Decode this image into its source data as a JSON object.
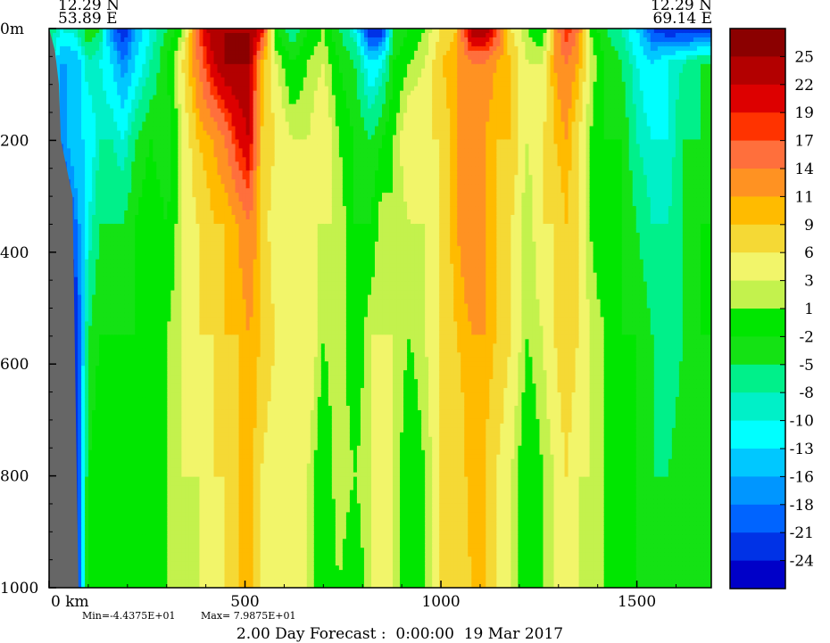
{
  "chart_data": {
    "type": "heatmap",
    "corner_left": {
      "lat": "12.29 N",
      "lon": "53.89 E"
    },
    "corner_right": {
      "lat": "12.29 N",
      "lon": "69.14 E"
    },
    "y_axis": {
      "ticks": [
        "0m",
        "200",
        "400",
        "600",
        "800",
        "1000"
      ],
      "range": [
        0,
        1000
      ],
      "inverted": true
    },
    "x_axis": {
      "ticks": [
        "0 km",
        "500",
        "1000",
        "1500"
      ],
      "range": [
        0,
        1690
      ]
    },
    "stats": {
      "min_label": "Min=-4.4375E+01",
      "max_label": "Max= 7.9875E+01"
    },
    "footer": "2.00 Day Forecast :  0:00:00  19 Mar 2017",
    "colorbar": {
      "labels": [
        "25",
        "22",
        "19",
        "17",
        "14",
        "11",
        "9",
        "6",
        "3",
        "1",
        "-2",
        "-5",
        "-8",
        "-10",
        "-13",
        "-16",
        "-18",
        "-21",
        "-24"
      ],
      "colors": [
        "#8b0000",
        "#b30000",
        "#dd0000",
        "#ff3300",
        "#ff6f3c",
        "#ff9222",
        "#ffbb00",
        "#f5d935",
        "#f2f56a",
        "#c3f24d",
        "#00e600",
        "#14e214",
        "#00f08a",
        "#00f0c8",
        "#00ffff",
        "#00c8ff",
        "#0096ff",
        "#0064ff",
        "#0032e6",
        "#0000c8"
      ]
    },
    "field": {
      "x": [
        0,
        30,
        70,
        100,
        130,
        160,
        190,
        220,
        260,
        300,
        340,
        380,
        420,
        450,
        480,
        510,
        540,
        580,
        620,
        660,
        700,
        740,
        780,
        820,
        850,
        880,
        920,
        960,
        1000,
        1040,
        1080,
        1110,
        1140,
        1180,
        1220,
        1260,
        1290,
        1320,
        1350,
        1380,
        1420,
        1460,
        1500,
        1540,
        1580,
        1620,
        1660,
        1690
      ],
      "columns": [
        [
          -5,
          -8,
          -10,
          -13,
          -10,
          -8,
          -5
        ],
        [
          -10,
          -16,
          -18,
          -24,
          -24,
          -24,
          -24
        ],
        [
          -8,
          -16,
          -13,
          -18,
          -24,
          -24,
          -24
        ],
        [
          -2,
          -8,
          -13,
          -10,
          -5,
          -2,
          -2
        ],
        [
          -5,
          -10,
          -8,
          -5,
          -2,
          1,
          -2
        ],
        [
          -18,
          -13,
          -8,
          -5,
          -2,
          -2,
          -2
        ],
        [
          -24,
          -18,
          -10,
          -5,
          -2,
          -2,
          1
        ],
        [
          -16,
          -13,
          -5,
          -2,
          -2,
          -2,
          -2
        ],
        [
          -10,
          -8,
          -2,
          1,
          -2,
          -2,
          1
        ],
        [
          -5,
          -2,
          -5,
          -2,
          1,
          1,
          1
        ],
        [
          0,
          6,
          3,
          3,
          3,
          3,
          1
        ],
        [
          17,
          14,
          9,
          6,
          6,
          3,
          3
        ],
        [
          25,
          22,
          11,
          9,
          6,
          6,
          3
        ],
        [
          25,
          25,
          14,
          9,
          9,
          6,
          6
        ],
        [
          25,
          25,
          19,
          11,
          9,
          9,
          9
        ],
        [
          25,
          25,
          22,
          14,
          11,
          11,
          11
        ],
        [
          22,
          11,
          9,
          9,
          9,
          6,
          6
        ],
        [
          -2,
          3,
          6,
          3,
          6,
          3,
          3
        ],
        [
          -8,
          -2,
          3,
          3,
          3,
          6,
          3
        ],
        [
          -2,
          1,
          3,
          3,
          6,
          3,
          3
        ],
        [
          1,
          3,
          6,
          3,
          1,
          -2,
          -2
        ],
        [
          -5,
          -2,
          1,
          3,
          3,
          3,
          1
        ],
        [
          -10,
          -5,
          -2,
          -2,
          -2,
          1,
          -2
        ],
        [
          -24,
          -13,
          -5,
          -2,
          3,
          3,
          3
        ],
        [
          -24,
          -10,
          -2,
          3,
          3,
          6,
          3
        ],
        [
          -5,
          -2,
          1,
          1,
          3,
          3,
          3
        ],
        [
          -2,
          1,
          6,
          3,
          1,
          -2,
          -2
        ],
        [
          1,
          3,
          6,
          3,
          3,
          1,
          1
        ],
        [
          6,
          9,
          6,
          6,
          6,
          6,
          6
        ],
        [
          9,
          11,
          11,
          11,
          9,
          6,
          6
        ],
        [
          25,
          14,
          14,
          14,
          11,
          11,
          9
        ],
        [
          25,
          14,
          11,
          11,
          11,
          9,
          9
        ],
        [
          19,
          11,
          9,
          9,
          9,
          6,
          6
        ],
        [
          6,
          9,
          9,
          6,
          6,
          3,
          3
        ],
        [
          1,
          3,
          3,
          1,
          1,
          -2,
          -2
        ],
        [
          -2,
          3,
          6,
          6,
          3,
          1,
          1
        ],
        [
          11,
          11,
          9,
          6,
          6,
          3,
          3
        ],
        [
          19,
          14,
          11,
          9,
          9,
          6,
          6
        ],
        [
          14,
          11,
          6,
          6,
          6,
          3,
          3
        ],
        [
          1,
          3,
          1,
          1,
          3,
          3,
          1
        ],
        [
          -5,
          -2,
          -2,
          -2,
          1,
          1,
          1
        ],
        [
          -8,
          -5,
          -2,
          -2,
          -2,
          -2,
          -2
        ],
        [
          -13,
          -10,
          -8,
          -5,
          -2,
          -2,
          -2
        ],
        [
          -21,
          -13,
          -10,
          -8,
          -5,
          -5,
          -5
        ],
        [
          -24,
          -10,
          -10,
          -8,
          -8,
          -5,
          -5
        ],
        [
          -24,
          -8,
          -5,
          -5,
          -5,
          -2,
          -2
        ],
        [
          -24,
          -5,
          -5,
          -2,
          -2,
          -5,
          -5
        ],
        [
          -24,
          -5,
          -2,
          -2,
          -2,
          -5,
          -5
        ]
      ],
      "depths": [
        0,
        60,
        200,
        350,
        550,
        800,
        1000
      ]
    },
    "land_mask": [
      {
        "x": 0,
        "depth_start": 0
      },
      {
        "x": 15,
        "depth_start": 40
      },
      {
        "x": 25,
        "depth_start": 100
      },
      {
        "x": 30,
        "depth_start": 200
      },
      {
        "x": 60,
        "depth_start": 300
      },
      {
        "x": 75,
        "depth_start": 1000
      }
    ]
  }
}
